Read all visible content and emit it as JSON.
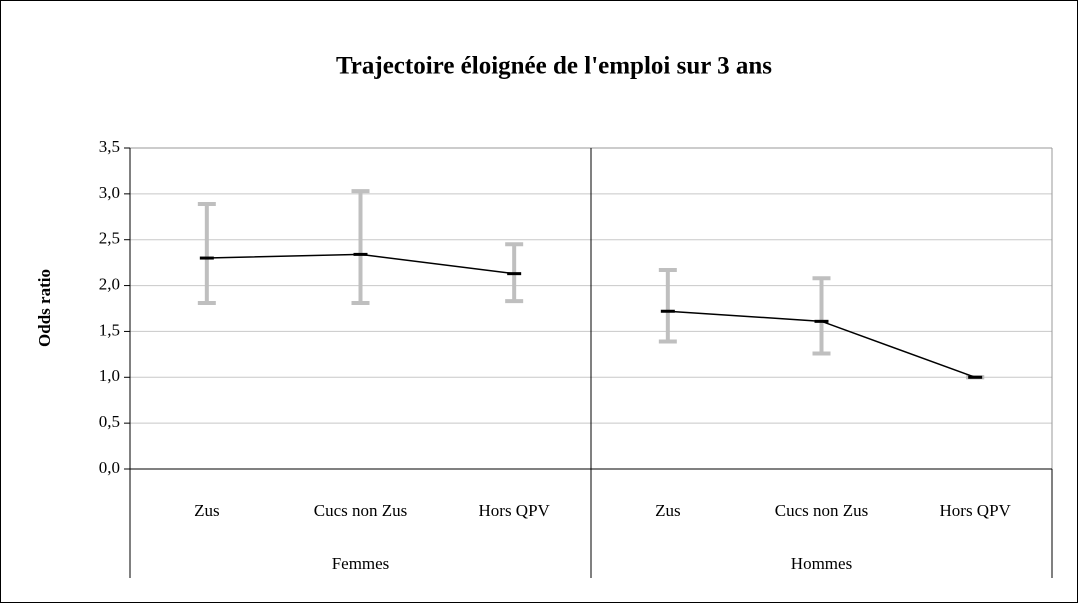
{
  "chart_data": {
    "type": "line",
    "title": "Trajectoire éloignée de l'emploi sur 3 ans",
    "y_label": "Odds ratio",
    "groups": [
      {
        "name": "Femmes",
        "categories": [
          "Zus",
          "Cucs non Zus",
          "Hors QPV"
        ],
        "values": [
          2.3,
          2.34,
          2.13
        ],
        "low": [
          1.81,
          1.81,
          1.83
        ],
        "high": [
          2.89,
          3.03,
          2.45
        ]
      },
      {
        "name": "Hommes",
        "categories": [
          "Zus",
          "Cucs non Zus",
          "Hors QPV"
        ],
        "values": [
          1.72,
          1.61,
          1.0
        ],
        "low": [
          1.39,
          1.26,
          1.0
        ],
        "high": [
          2.17,
          2.08,
          1.0
        ]
      }
    ],
    "line_color": "#000000",
    "error_color": "#bfbfbf",
    "ylim": [
      0,
      3.5
    ],
    "yticks": [
      {
        "value": 0,
        "label": "0,0"
      },
      {
        "value": 0.5,
        "label": "0,5"
      },
      {
        "value": 1,
        "label": "1,0"
      },
      {
        "value": 1.5,
        "label": "1,5"
      },
      {
        "value": 2,
        "label": "2,0"
      },
      {
        "value": 2.5,
        "label": "2,5"
      },
      {
        "value": 3,
        "label": "3,0"
      },
      {
        "value": 3.5,
        "label": "3,5"
      }
    ],
    "grid": true
  }
}
